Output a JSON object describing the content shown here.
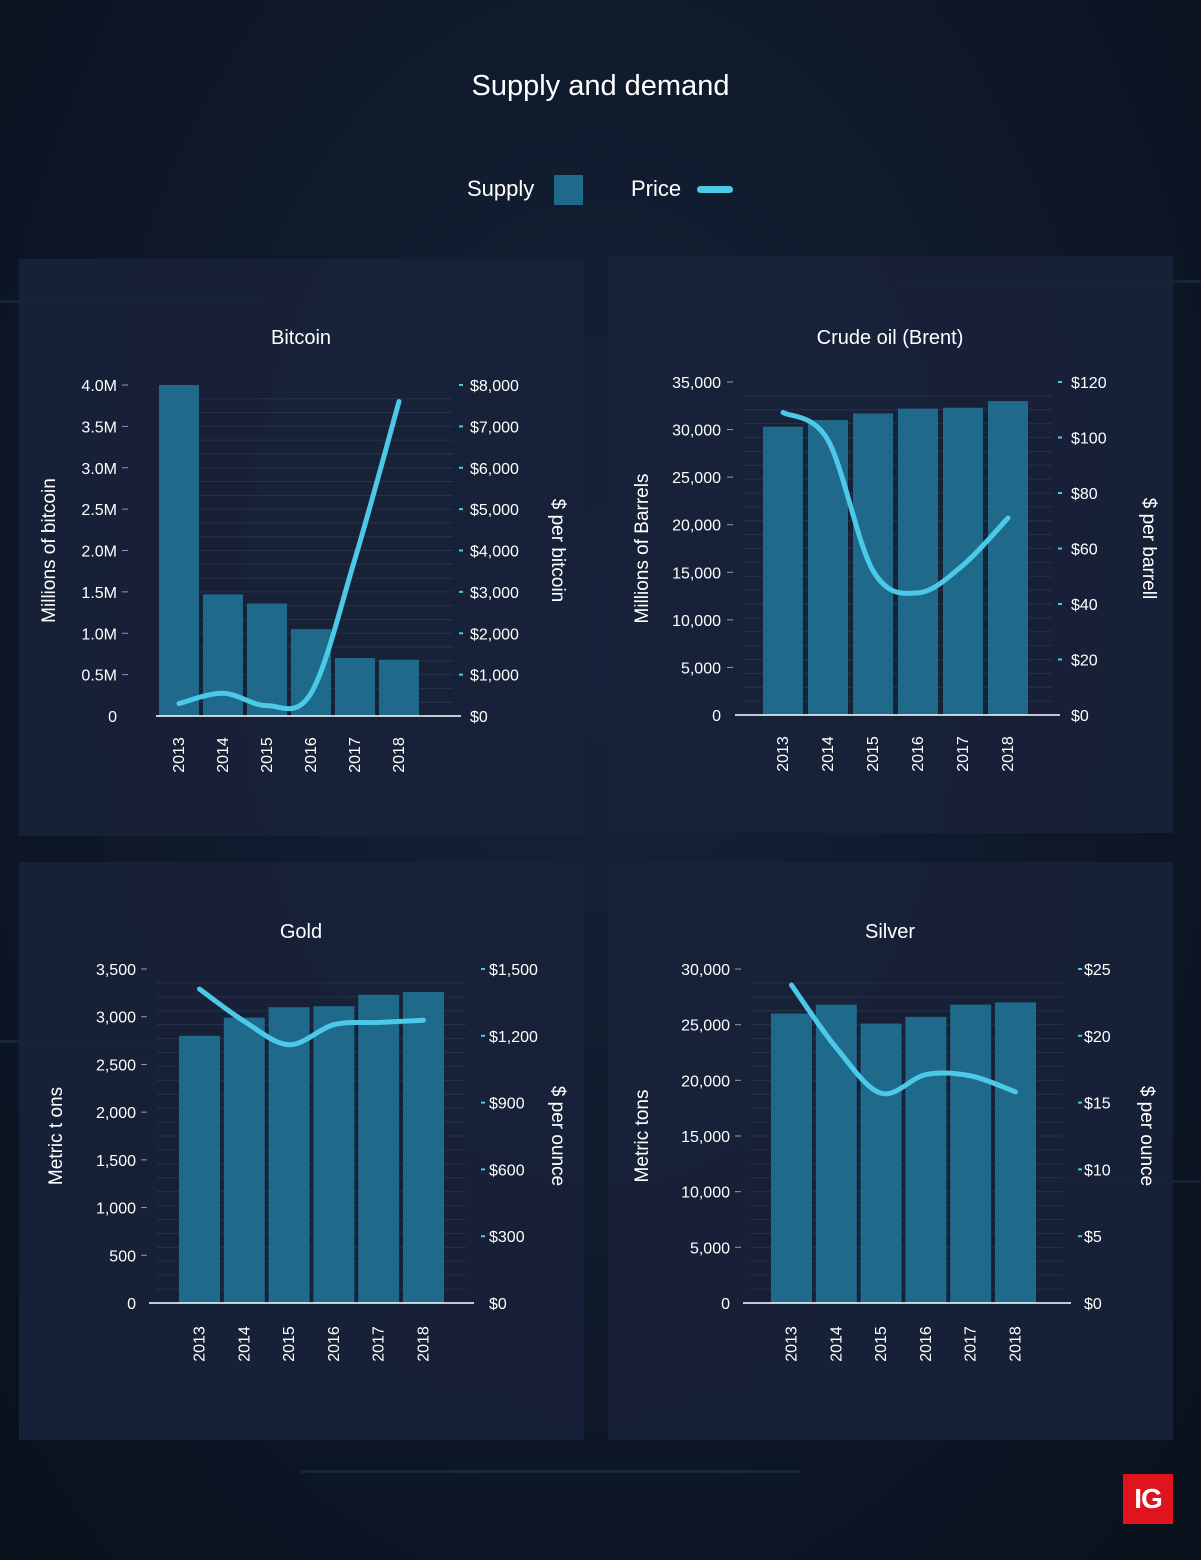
{
  "title": "Supply and demand",
  "legend": {
    "supply_label": "Supply",
    "price_label": "Price"
  },
  "colors": {
    "bar": "#1f6a8a",
    "line": "#4cc8e8",
    "panel": "#182138",
    "background": "#0f1a2c"
  },
  "logo": {
    "text": "IG",
    "color": "#e0141e"
  },
  "chart_data": [
    {
      "type": "bar",
      "title": "Bitcoin",
      "categories": [
        "2013",
        "2014",
        "2015",
        "2016",
        "2017",
        "2018"
      ],
      "series": [
        {
          "name": "Supply",
          "type": "bar",
          "axis": "left",
          "values": [
            4000000,
            1470000,
            1360000,
            1050000,
            700000,
            680000
          ]
        },
        {
          "name": "Price",
          "type": "line",
          "axis": "right",
          "values": [
            300,
            550,
            250,
            550,
            3800,
            7600
          ]
        }
      ],
      "ylabel_left": "Millions of bitcoin",
      "ylabel_right": "$ per bitcoin",
      "ylim_left": [
        0,
        4000000
      ],
      "ylim_right": [
        0,
        8000
      ],
      "yticks_left": [
        "0",
        "0.5M",
        "1.0M",
        "1.5M",
        "2.0M",
        "2.5M",
        "3.0M",
        "3.5M",
        "4.0M"
      ],
      "yticks_right": [
        "$0",
        "$1,000",
        "$2,000",
        "$3,000",
        "$4,000",
        "$5,000",
        "$6,000",
        "$7,000",
        "$8,000"
      ]
    },
    {
      "type": "bar",
      "title": "Crude oil (Brent)",
      "categories": [
        "2013",
        "2014",
        "2015",
        "2016",
        "2017",
        "2018"
      ],
      "series": [
        {
          "name": "Supply",
          "type": "bar",
          "axis": "left",
          "values": [
            30300,
            31000,
            31700,
            32200,
            32300,
            33000
          ]
        },
        {
          "name": "Price",
          "type": "line",
          "axis": "right",
          "values": [
            109,
            99,
            52,
            44,
            54,
            71
          ]
        }
      ],
      "ylabel_left": "Millions of Barrels",
      "ylabel_right": "$ per barrell",
      "ylim_left": [
        0,
        35000
      ],
      "ylim_right": [
        0,
        120
      ],
      "yticks_left": [
        "0",
        "5,000",
        "10,000",
        "15,000",
        "20,000",
        "25,000",
        "30,000",
        "35,000"
      ],
      "yticks_right": [
        "$0",
        "$20",
        "$40",
        "$60",
        "$80",
        "$100",
        "$120"
      ]
    },
    {
      "type": "bar",
      "title": "Gold",
      "categories": [
        "2013",
        "2014",
        "2015",
        "2016",
        "2017",
        "2018"
      ],
      "series": [
        {
          "name": "Supply",
          "type": "bar",
          "axis": "left",
          "values": [
            2800,
            2990,
            3100,
            3110,
            3230,
            3260
          ]
        },
        {
          "name": "Price",
          "type": "line",
          "axis": "right",
          "values": [
            1410,
            1265,
            1160,
            1250,
            1260,
            1270
          ]
        }
      ],
      "ylabel_left": "Metric t ons",
      "ylabel_right": "$ per ounce",
      "ylim_left": [
        0,
        3500
      ],
      "ylim_right": [
        0,
        1500
      ],
      "yticks_left": [
        "0",
        "500",
        "1,000",
        "1,500",
        "2,000",
        "2,500",
        "3,000",
        "3,500"
      ],
      "yticks_right": [
        "$0",
        "$300",
        "$600",
        "$900",
        "$1,200",
        "$1,500"
      ]
    },
    {
      "type": "bar",
      "title": "Silver",
      "categories": [
        "2013",
        "2014",
        "2015",
        "2016",
        "2017",
        "2018"
      ],
      "series": [
        {
          "name": "Supply",
          "type": "bar",
          "axis": "left",
          "values": [
            26000,
            26800,
            25100,
            25700,
            26800,
            27000
          ]
        },
        {
          "name": "Price",
          "type": "line",
          "axis": "right",
          "values": [
            23.8,
            19.1,
            15.7,
            17.1,
            17.0,
            15.8
          ]
        }
      ],
      "ylabel_left": "Metric tons",
      "ylabel_right": "$ per ounce",
      "ylim_left": [
        0,
        30000
      ],
      "ylim_right": [
        0,
        25
      ],
      "yticks_left": [
        "0",
        "5,000",
        "10,000",
        "15,000",
        "20,000",
        "25,000",
        "30,000"
      ],
      "yticks_right": [
        "$0",
        "$5",
        "$10",
        "$15",
        "$20",
        "$25"
      ]
    }
  ]
}
